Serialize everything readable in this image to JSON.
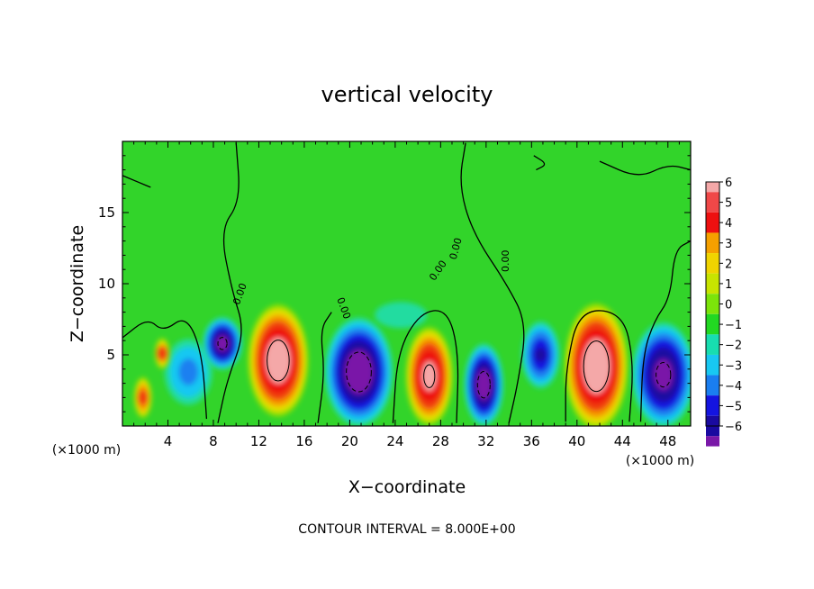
{
  "chart_data": {
    "type": "heatmap",
    "title": "vertical velocity",
    "xlabel": "X−coordinate",
    "ylabel": "Z−coordinate",
    "x_unit_left": "(×1000 m)",
    "x_unit_right": "(×1000 m)",
    "footer": "CONTOUR INTERVAL = 8.000E+00",
    "xlim": [
      0,
      50
    ],
    "ylim": [
      0,
      20
    ],
    "x_ticks": [
      4,
      8,
      12,
      16,
      20,
      24,
      28,
      32,
      36,
      40,
      44,
      48
    ],
    "x_tick_labels": [
      "4",
      "8",
      "12",
      "16",
      "20",
      "24",
      "28",
      "32",
      "36",
      "40",
      "44",
      "48"
    ],
    "y_ticks": [
      5,
      10,
      15
    ],
    "y_tick_labels": [
      "5",
      "10",
      "15"
    ],
    "colorbar": {
      "min": -6,
      "max": 6,
      "labels": [
        "6",
        "5",
        "4",
        "3",
        "2",
        "1",
        "0",
        "−1",
        "−2",
        "−3",
        "−4",
        "−5",
        "−6"
      ],
      "colors": [
        "#f4a8a8",
        "#f04848",
        "#ee1010",
        "#f5a000",
        "#f0d400",
        "#c8e400",
        "#7ce40a",
        "#22d822",
        "#18ddb0",
        "#18c8f2",
        "#1a7ef0",
        "#1414e0",
        "#1a0aa0",
        "#7a18a8"
      ]
    },
    "contour_labels": [
      "0.00",
      "0.00",
      "0.00",
      "0.00",
      "0.00"
    ],
    "cells": [
      {
        "x": 1.8,
        "z": 2.0,
        "rx": 0.7,
        "rz": 1.3,
        "w": 4.5
      },
      {
        "x": 3.5,
        "z": 5.1,
        "rx": 0.6,
        "rz": 1.0,
        "w": 4.0
      },
      {
        "x": 5.8,
        "z": 3.8,
        "rx": 2.0,
        "rz": 2.2,
        "w": -3.4
      },
      {
        "x": 8.8,
        "z": 5.8,
        "rx": 1.5,
        "rz": 1.6,
        "w": -6.5
      },
      {
        "x": 13.7,
        "z": 4.6,
        "rx": 2.3,
        "rz": 3.4,
        "w": 7.0
      },
      {
        "x": 20.8,
        "z": 3.8,
        "rx": 2.6,
        "rz": 3.3,
        "w": -7.0
      },
      {
        "x": 27.0,
        "z": 3.5,
        "rx": 1.8,
        "rz": 3.0,
        "w": 6.5
      },
      {
        "x": 31.8,
        "z": 2.9,
        "rx": 1.5,
        "rz": 2.5,
        "w": -6.8
      },
      {
        "x": 36.8,
        "z": 5.0,
        "rx": 1.5,
        "rz": 2.1,
        "w": -5.0
      },
      {
        "x": 41.7,
        "z": 4.2,
        "rx": 2.4,
        "rz": 3.8,
        "w": 7.2
      },
      {
        "x": 47.6,
        "z": 3.6,
        "rx": 2.4,
        "rz": 3.2,
        "w": -6.5
      },
      {
        "x": 24.5,
        "z": 14.5,
        "rx": 10.0,
        "rz": 6.0,
        "w": -0.5
      },
      {
        "x": 24.5,
        "z": 7.8,
        "rx": 3.0,
        "rz": 1.2,
        "w": -1.6
      }
    ]
  }
}
